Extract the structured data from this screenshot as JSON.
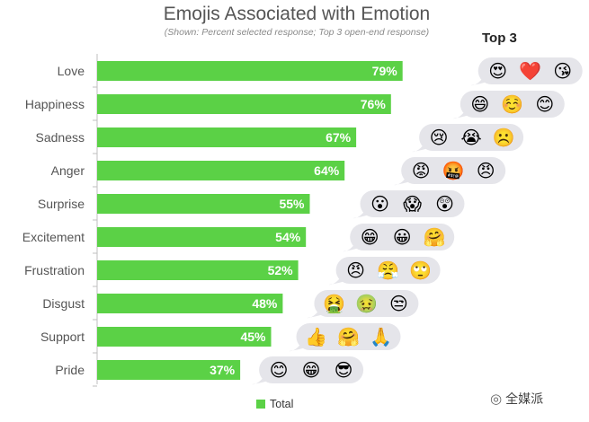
{
  "title": "Emojis Associated with Emotion",
  "subtitle": "(Shown: Percent selected response; Top 3 open-end response)",
  "top3_label": "Top 3",
  "legend_label": "Total",
  "watermark": "全媒派",
  "colors": {
    "bar": "#5bd146",
    "bubble": "#e5e5ea",
    "axis": "#bfbfbf",
    "label": "#555555"
  },
  "chart_data": {
    "type": "bar",
    "orientation": "horizontal",
    "categories": [
      "Love",
      "Happiness",
      "Sadness",
      "Anger",
      "Surprise",
      "Excitement",
      "Frustration",
      "Disgust",
      "Support",
      "Pride"
    ],
    "series": [
      {
        "name": "Total",
        "values": [
          79,
          76,
          67,
          64,
          55,
          54,
          52,
          48,
          45,
          37
        ]
      }
    ],
    "value_labels": [
      "79%",
      "76%",
      "67%",
      "64%",
      "55%",
      "54%",
      "52%",
      "48%",
      "45%",
      "37%"
    ],
    "xlim": [
      0,
      100
    ],
    "grid": false,
    "legend_position": "bottom"
  },
  "emojis": [
    [
      "😍",
      "❤️",
      "😘"
    ],
    [
      "😄",
      "☺️",
      "😊"
    ],
    [
      "😢",
      "😭",
      "☹️"
    ],
    [
      "😡",
      "🤬",
      "😠"
    ],
    [
      "😮",
      "😱",
      "😲"
    ],
    [
      "😁",
      "😀",
      "🤗"
    ],
    [
      "😠",
      "😤",
      "🙄"
    ],
    [
      "🤮",
      "🤢",
      "😒"
    ],
    [
      "👍",
      "🤗",
      "🙏"
    ],
    [
      "😊",
      "😁",
      "😎"
    ]
  ]
}
